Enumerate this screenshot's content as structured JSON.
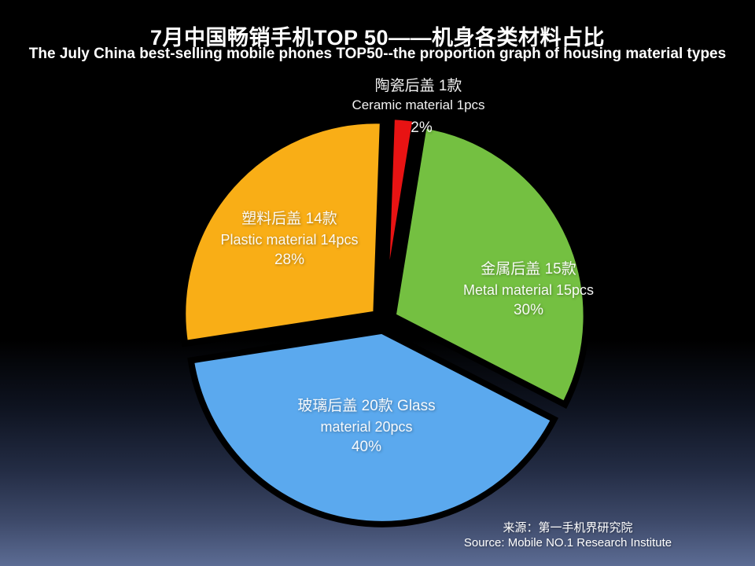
{
  "header": {
    "title_cn": "7月中国畅销手机TOP 50——机身各类材料占比",
    "subtitle_en": "The July China best-selling mobile phones TOP50--the proportion graph of housing material types",
    "text_color": "#ffffff"
  },
  "chart_data": {
    "type": "pie",
    "title": "7月中国畅销手机TOP 50——机身各类材料占比",
    "subtitle": "The July China best-selling mobile phones TOP50--the proportion graph of housing material types",
    "total_phones": 50,
    "start_angle_deg": 2,
    "legend": "none",
    "exploded": true,
    "background": {
      "top": "#000000",
      "bottom": "#5c6c94"
    },
    "slices": [
      {
        "id": "ceramic",
        "line1": "陶瓷后盖 1款",
        "line2": "Ceramic material 1pcs",
        "pct_label": "2%",
        "value": 2,
        "count": 1,
        "color": "#e81313",
        "explode": 14
      },
      {
        "id": "metal",
        "line1": "金属后盖 15款",
        "line2": "Metal material 15pcs",
        "pct_label": "30%",
        "value": 30,
        "count": 15,
        "color": "#74c041",
        "explode": 13
      },
      {
        "id": "glass",
        "line1": "玻璃后盖 20款 Glass",
        "line2": "material 20pcs",
        "pct_label": "40%",
        "value": 40,
        "count": 20,
        "color": "#5ba9ee",
        "explode": 13
      },
      {
        "id": "plastic",
        "line1": "塑料后盖 14款",
        "line2": "Plastic material 14pcs",
        "pct_label": "28%",
        "value": 28,
        "count": 14,
        "color": "#f9ae16",
        "explode": 13
      }
    ]
  },
  "source": {
    "line_cn": "来源：第一手机界研究院",
    "line_en": "Source: Mobile NO.1 Research Institute"
  }
}
